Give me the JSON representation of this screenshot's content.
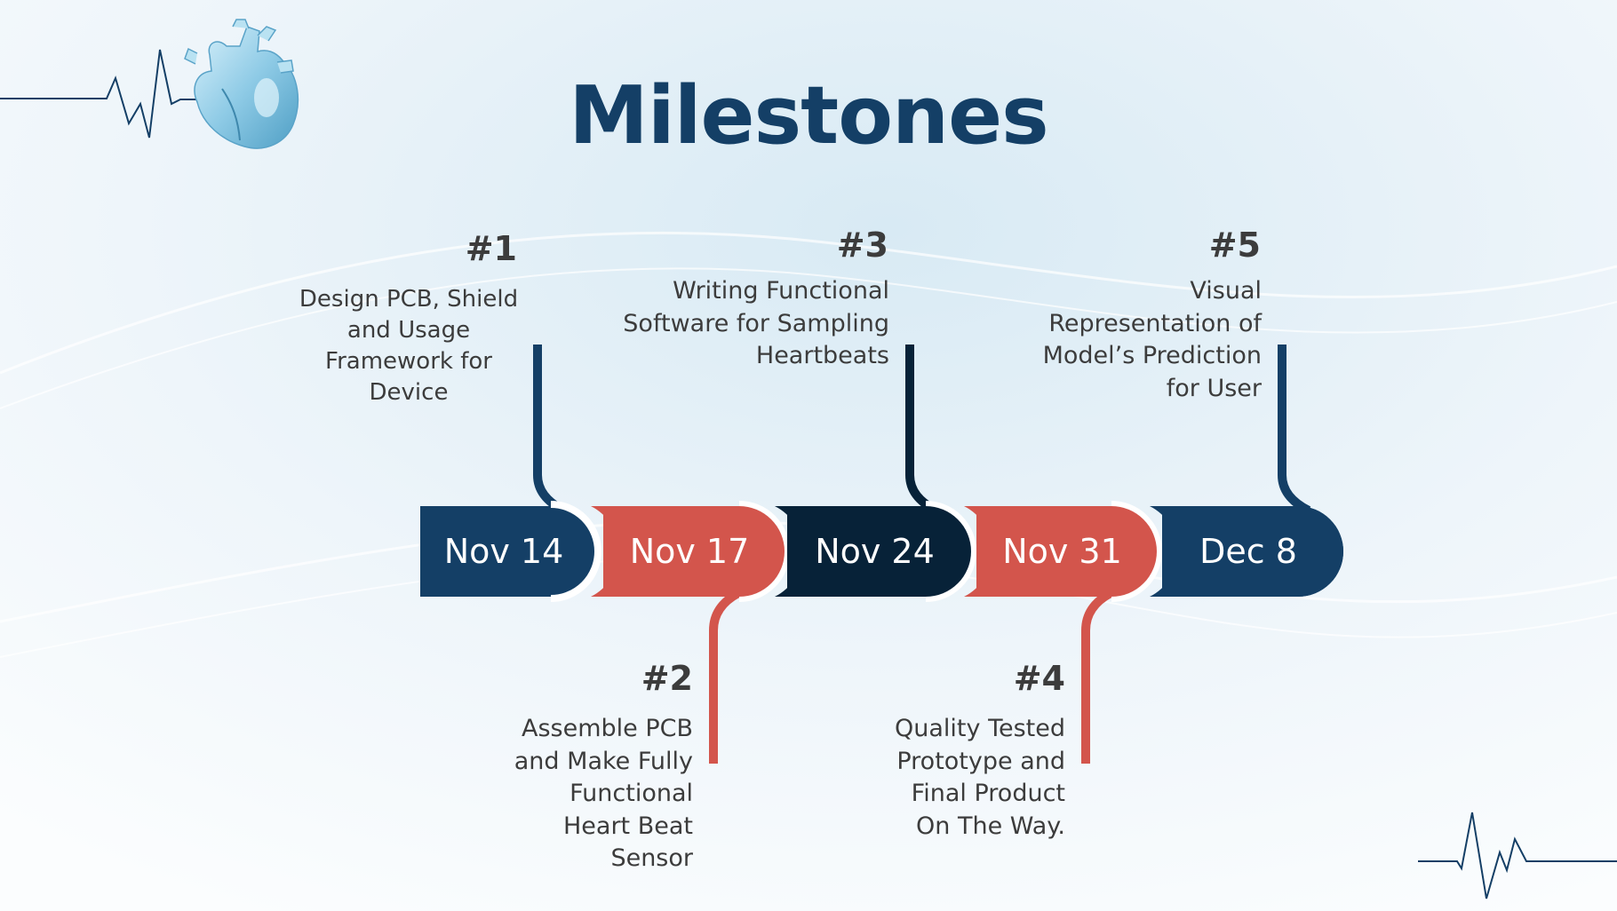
{
  "title": "Milestones",
  "colors": {
    "navy": "#143f66",
    "red": "#d3554c",
    "dark_navy": "#072238",
    "text": "#3c3c3c"
  },
  "decorations": {
    "top_left": "heart-icon",
    "heartbeat_lines": "heartbeat-line-icon"
  },
  "milestones": [
    {
      "number": "#1",
      "date": "Nov 14",
      "color": "navy",
      "lines": [
        "Design PCB, Shield",
        "and Usage",
        "Framework for",
        "Device"
      ]
    },
    {
      "number": "#2",
      "date": "Nov 17",
      "color": "red",
      "lines": [
        "Assemble PCB",
        "and Make Fully",
        "Functional",
        "Heart Beat",
        "Sensor"
      ]
    },
    {
      "number": "#3",
      "date": "Nov 24",
      "color": "dark_navy",
      "lines": [
        "Writing Functional",
        "Software for Sampling",
        "Heartbeats"
      ]
    },
    {
      "number": "#4",
      "date": "Nov 31",
      "color": "red",
      "lines": [
        "Quality Tested",
        "Prototype and",
        "Final Product",
        "On The Way."
      ]
    },
    {
      "number": "#5",
      "date": "Dec 8",
      "color": "navy",
      "lines": [
        "Visual",
        "Representation of",
        "Model’s Prediction",
        "for User"
      ]
    }
  ]
}
